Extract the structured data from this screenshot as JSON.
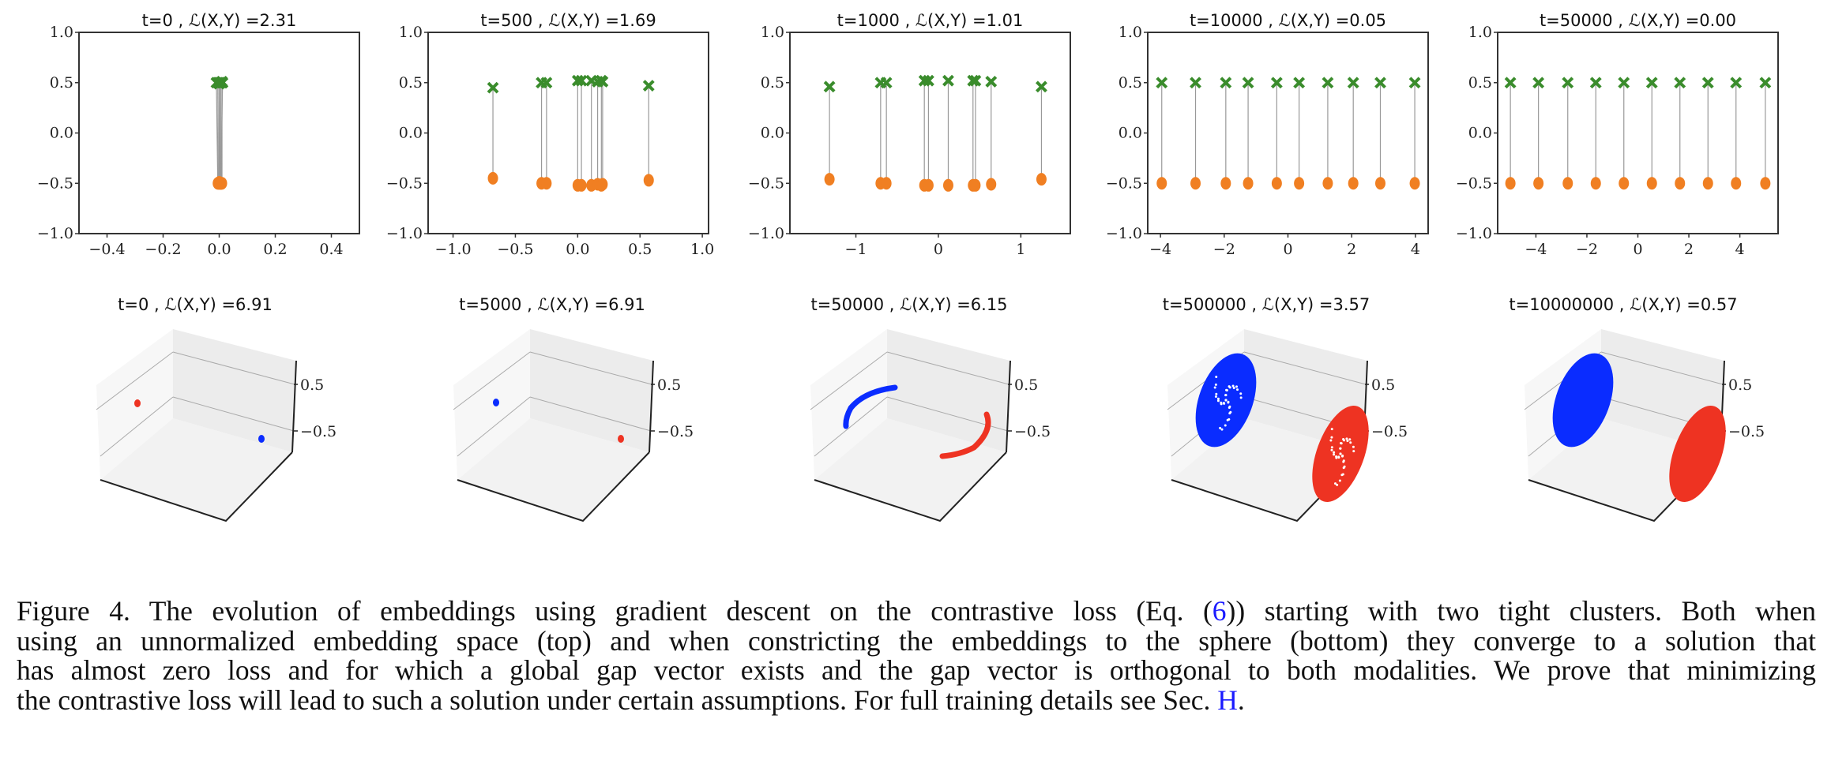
{
  "chart_data": [
    {
      "type": "scatter",
      "title": "t=0 , ℒ(X,Y) =2.31",
      "xlim": [
        -0.5,
        0.5
      ],
      "ylim": [
        -1.0,
        1.0
      ],
      "xticks": [
        "−0.4",
        "−0.2",
        "0.0",
        "0.2",
        "0.4"
      ],
      "xtick_values": [
        -0.4,
        -0.2,
        0,
        0.2,
        0.4
      ],
      "yticks": [
        "−1.0",
        "−0.5",
        "0.0",
        "0.5",
        "1.0"
      ],
      "ytick_values": [
        -1,
        -0.5,
        0,
        0.5,
        1
      ],
      "series": [
        {
          "marker": "x",
          "color": "#3a8c2c",
          "x": [
            -0.01,
            0.0,
            0.005,
            0.01,
            0.0,
            -0.005,
            0.01,
            0.005,
            0.0,
            0.012
          ],
          "y": [
            0.5,
            0.5,
            0.5,
            0.5,
            0.49,
            0.5,
            0.51,
            0.5,
            0.5,
            0.5
          ]
        },
        {
          "marker": "o",
          "color": "#f07f22",
          "x": [
            -0.005,
            0.0,
            0.005,
            0.01,
            0.0,
            -0.003,
            0.008,
            0.004,
            0.002,
            0.006
          ],
          "y": [
            -0.5,
            -0.5,
            -0.5,
            -0.5,
            -0.49,
            -0.5,
            -0.5,
            -0.5,
            -0.5,
            -0.5
          ]
        }
      ]
    },
    {
      "type": "scatter",
      "title": "t=500 , ℒ(X,Y) =1.69",
      "xlim": [
        -1.2,
        1.05
      ],
      "ylim": [
        -1.0,
        1.0
      ],
      "xticks": [
        "−1.0",
        "−0.5",
        "0.0",
        "0.5",
        "1.0"
      ],
      "xtick_values": [
        -1,
        -0.5,
        0,
        0.5,
        1
      ],
      "yticks": [
        "−1.0",
        "−0.5",
        "0.0",
        "0.5",
        "1.0"
      ],
      "ytick_values": [
        -1,
        -0.5,
        0,
        0.5,
        1
      ],
      "series": [
        {
          "marker": "x",
          "color": "#3a8c2c",
          "x": [
            -0.68,
            -0.29,
            -0.25,
            0.0,
            0.03,
            0.11,
            0.16,
            0.19,
            0.2,
            0.57
          ],
          "y": [
            0.45,
            0.5,
            0.5,
            0.52,
            0.52,
            0.52,
            0.51,
            0.52,
            0.51,
            0.47
          ]
        },
        {
          "marker": "o",
          "color": "#f07f22",
          "x": [
            -0.68,
            -0.29,
            -0.25,
            0.0,
            0.03,
            0.11,
            0.16,
            0.19,
            0.2,
            0.57
          ],
          "y": [
            -0.45,
            -0.5,
            -0.5,
            -0.52,
            -0.52,
            -0.52,
            -0.51,
            -0.52,
            -0.51,
            -0.47
          ]
        }
      ]
    },
    {
      "type": "scatter",
      "title": "t=1000 , ℒ(X,Y) =1.01",
      "xlim": [
        -1.8,
        1.6
      ],
      "ylim": [
        -1.0,
        1.0
      ],
      "xticks": [
        "−1",
        "0",
        "1"
      ],
      "xtick_values": [
        -1,
        0,
        1
      ],
      "yticks": [
        "−1.0",
        "−0.5",
        "0.0",
        "0.5",
        "1.0"
      ],
      "ytick_values": [
        -1,
        -0.5,
        0,
        0.5,
        1
      ],
      "series": [
        {
          "marker": "x",
          "color": "#3a8c2c",
          "x": [
            -1.32,
            -0.7,
            -0.63,
            -0.17,
            -0.12,
            0.12,
            0.42,
            0.45,
            0.64,
            1.25
          ],
          "y": [
            0.46,
            0.5,
            0.5,
            0.52,
            0.52,
            0.52,
            0.52,
            0.52,
            0.51,
            0.46
          ]
        },
        {
          "marker": "o",
          "color": "#f07f22",
          "x": [
            -1.32,
            -0.7,
            -0.63,
            -0.17,
            -0.12,
            0.12,
            0.42,
            0.45,
            0.64,
            1.25
          ],
          "y": [
            -0.46,
            -0.5,
            -0.5,
            -0.52,
            -0.52,
            -0.52,
            -0.52,
            -0.52,
            -0.51,
            -0.46
          ]
        }
      ]
    },
    {
      "type": "scatter",
      "title": "t=10000 , ℒ(X,Y) =0.05",
      "xlim": [
        -4.4,
        4.4
      ],
      "ylim": [
        -1.0,
        1.0
      ],
      "xticks": [
        "−4",
        "−2",
        "0",
        "2",
        "4"
      ],
      "xtick_values": [
        -4,
        -2,
        0,
        2,
        4
      ],
      "yticks": [
        "−1.0",
        "−0.5",
        "0.0",
        "0.5",
        "1.0"
      ],
      "ytick_values": [
        -1,
        -0.5,
        0,
        0.5,
        1
      ],
      "series": [
        {
          "marker": "x",
          "color": "#3a8c2c",
          "x": [
            -3.96,
            -2.9,
            -1.95,
            -1.25,
            -0.35,
            0.35,
            1.25,
            2.05,
            2.9,
            3.98
          ],
          "y": [
            0.5,
            0.5,
            0.5,
            0.5,
            0.5,
            0.5,
            0.5,
            0.5,
            0.5,
            0.5
          ]
        },
        {
          "marker": "o",
          "color": "#f07f22",
          "x": [
            -3.96,
            -2.9,
            -1.95,
            -1.25,
            -0.35,
            0.35,
            1.25,
            2.05,
            2.9,
            3.98
          ],
          "y": [
            -0.5,
            -0.5,
            -0.5,
            -0.5,
            -0.5,
            -0.5,
            -0.5,
            -0.5,
            -0.5,
            -0.5
          ]
        }
      ]
    },
    {
      "type": "scatter",
      "title": "t=50000 , ℒ(X,Y) =0.00",
      "xlim": [
        -5.5,
        5.5
      ],
      "ylim": [
        -1.0,
        1.0
      ],
      "xticks": [
        "−4",
        "−2",
        "0",
        "2",
        "4"
      ],
      "xtick_values": [
        -4,
        -2,
        0,
        2,
        4
      ],
      "yticks": [
        "−1.0",
        "−0.5",
        "0.0",
        "0.5",
        "1.0"
      ],
      "ytick_values": [
        -1,
        -0.5,
        0,
        0.5,
        1
      ],
      "series": [
        {
          "marker": "x",
          "color": "#3a8c2c",
          "x": [
            -5.0,
            -3.9,
            -2.75,
            -1.65,
            -0.55,
            0.55,
            1.65,
            2.75,
            3.85,
            5.0
          ],
          "y": [
            0.5,
            0.5,
            0.5,
            0.5,
            0.5,
            0.5,
            0.5,
            0.5,
            0.5,
            0.5
          ]
        },
        {
          "marker": "o",
          "color": "#f07f22",
          "x": [
            -5.0,
            -3.9,
            -2.75,
            -1.65,
            -0.55,
            0.55,
            1.65,
            2.75,
            3.85,
            5.0
          ],
          "y": [
            -0.5,
            -0.5,
            -0.5,
            -0.5,
            -0.5,
            -0.5,
            -0.5,
            -0.5,
            -0.5,
            -0.5
          ]
        }
      ]
    },
    {
      "type": "scatter3d",
      "title": "t=0 , ℒ(X,Y) =6.91",
      "zticks": [
        "0.5",
        "−0.5"
      ],
      "blue": "tight cluster",
      "red": "tight cluster"
    },
    {
      "type": "scatter3d",
      "title": "t=5000 , ℒ(X,Y) =6.91",
      "zticks": [
        "0.5",
        "−0.5"
      ],
      "blue": "tight cluster",
      "red": "tight cluster"
    },
    {
      "type": "scatter3d",
      "title": "t=50000 , ℒ(X,Y) =6.15",
      "zticks": [
        "0.5",
        "−0.5"
      ],
      "blue": "arc",
      "red": "arc"
    },
    {
      "type": "scatter3d",
      "title": "t=500000 , ℒ(X,Y) =3.57",
      "zticks": [
        "0.5",
        "−0.5"
      ],
      "blue": "sparse cap",
      "red": "sparse cap"
    },
    {
      "type": "scatter3d",
      "title": "t=10000000 , ℒ(X,Y) =0.57",
      "zticks": [
        "0.5",
        "−0.5"
      ],
      "blue": "cap",
      "red": "cap"
    }
  ],
  "colors": {
    "x_marker": "#3a8c2c",
    "o_marker": "#f07f22",
    "blue": "#0a2cff",
    "red": "#ee3322",
    "link": "#1a1aff"
  },
  "caption": {
    "line1_a": "Figure 4. The evolution of embeddings using gradient descent on the contrastive loss (Eq. (",
    "eq_ref": "6",
    "line1_b": ")) starting with two tight clusters. Both when",
    "line2": "using an unnormalized embedding space (top) and when constricting the embeddings to the sphere (bottom) they converge to a solution that",
    "line3": "has almost zero loss and for which a global gap vector exists and the gap vector is orthogonal to both modalities. We prove that minimizing",
    "line4_a": "the contrastive loss will lead to such a solution under certain assumptions. For full training details see Sec. ",
    "sec_ref": "H",
    "line4_b": "."
  }
}
